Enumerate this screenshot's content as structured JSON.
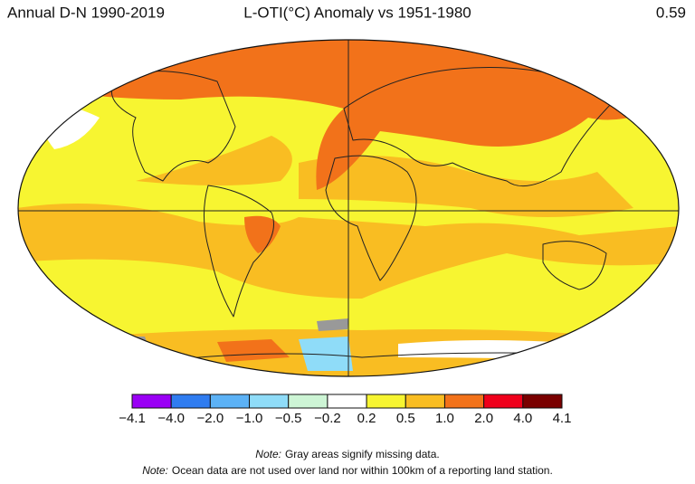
{
  "header": {
    "period": "Annual D-N 1990-2019",
    "title": "L-OTI(°C) Anomaly vs 1951-1980",
    "global_mean": "0.59"
  },
  "legend": {
    "colors": [
      "#9a00f5",
      "#2f7cf0",
      "#5cb2f6",
      "#8fdcf8",
      "#cdf5d5",
      "#ffffff",
      "#f7f531",
      "#f9bd22",
      "#f2721a",
      "#ef001b",
      "#7a0000"
    ],
    "labels": [
      "−4.1",
      "−4.0",
      "−2.0",
      "−1.0",
      "−0.5",
      "−0.2",
      "0.2",
      "0.5",
      "1.0",
      "2.0",
      "4.0",
      "4.1"
    ]
  },
  "notes": [
    {
      "label": "Note:",
      "text": "Gray areas signify missing data."
    },
    {
      "label": "Note:",
      "text": "Ocean data are not used over land nor within 100km of a reporting land station."
    }
  ]
}
